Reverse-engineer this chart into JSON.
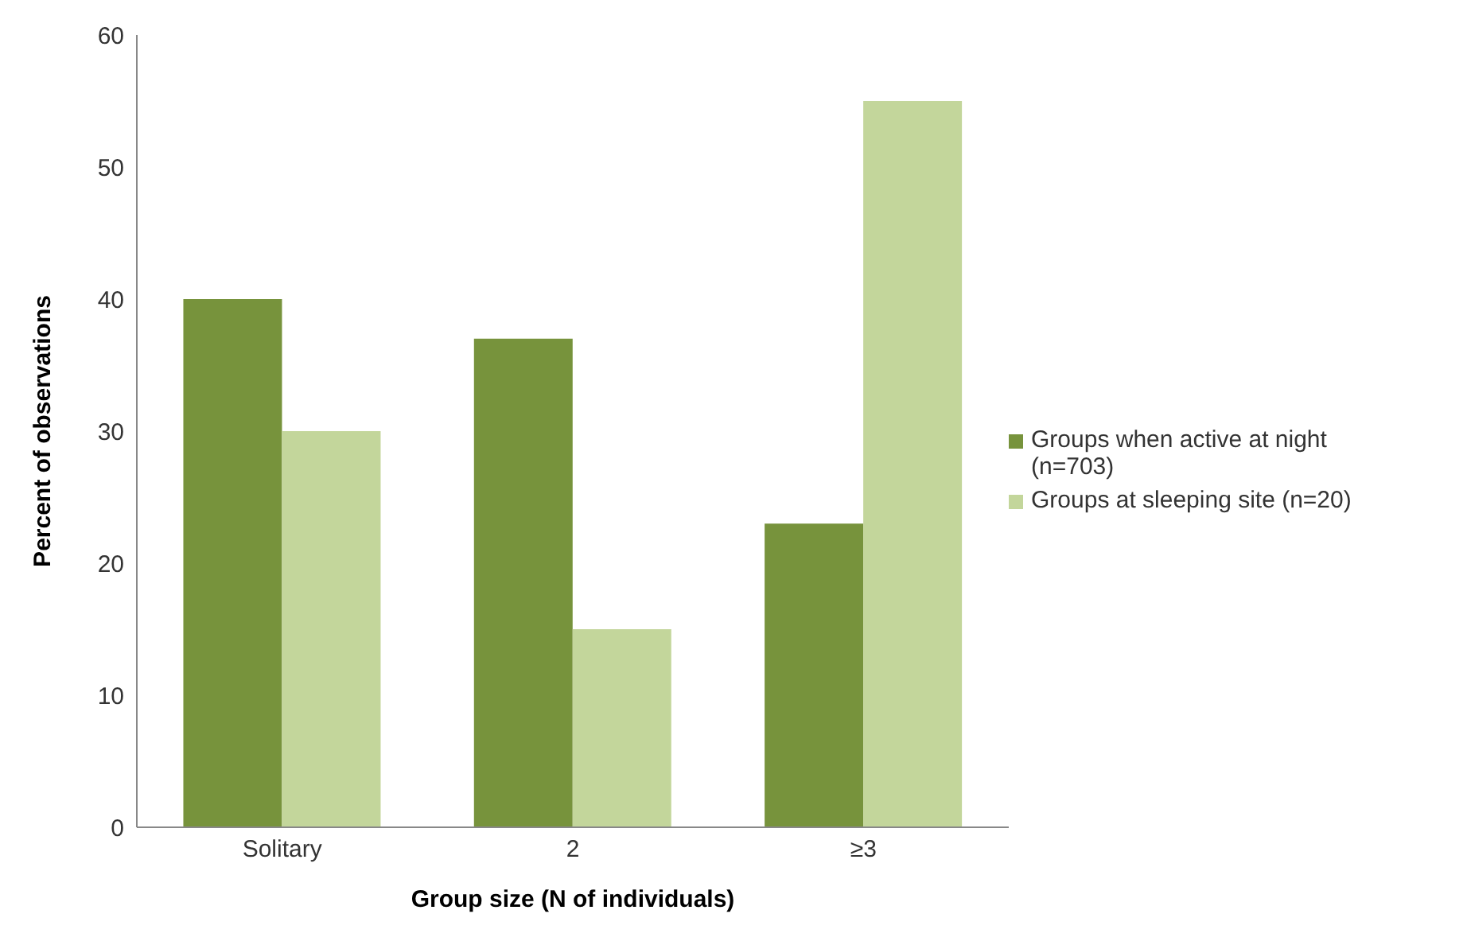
{
  "chart_data": {
    "type": "bar",
    "xlabel": "Group size (N of individuals)",
    "ylabel": "Percent of observations",
    "categories": [
      "Solitary",
      "2",
      "≥3"
    ],
    "series": [
      {
        "name": "Groups when active at night (n=703)",
        "color": "#77933c",
        "values": [
          40,
          37,
          23
        ]
      },
      {
        "name": "Groups at sleeping site (n=20)",
        "color": "#c3d69b",
        "values": [
          30,
          15,
          55
        ]
      }
    ],
    "ylim": [
      0,
      60
    ],
    "yticks": [
      0,
      10,
      20,
      30,
      40,
      50,
      60
    ],
    "grid": false,
    "legend": "right"
  }
}
